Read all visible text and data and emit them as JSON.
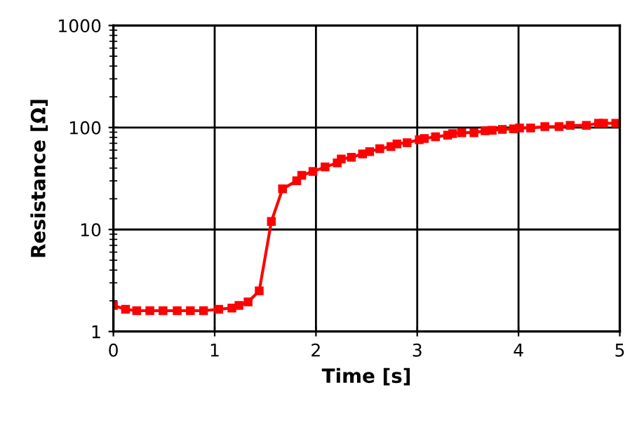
{
  "chart_data": {
    "type": "line",
    "xlabel": "Time [s]",
    "ylabel": "Resistance [Ω]",
    "log": "y",
    "grid": true,
    "marker": "square",
    "line_style": "solid",
    "xlim": [
      0,
      5
    ],
    "xticks": [
      0,
      1,
      2,
      3,
      4,
      5
    ],
    "ylim": [
      1,
      1000
    ],
    "yticks": [
      1,
      10,
      100,
      1000
    ],
    "series": [
      {
        "color": "#ff0000",
        "x": [
          0.0,
          0.12,
          0.23,
          0.36,
          0.49,
          0.63,
          0.76,
          0.89,
          1.04,
          1.17,
          1.24,
          1.33,
          1.44,
          1.56,
          1.67,
          1.81,
          1.86,
          1.97,
          2.09,
          2.21,
          2.25,
          2.35,
          2.46,
          2.53,
          2.63,
          2.74,
          2.8,
          2.9,
          3.02,
          3.07,
          3.18,
          3.3,
          3.35,
          3.44,
          3.56,
          3.67,
          3.74,
          3.84,
          3.95,
          4.01,
          4.12,
          4.26,
          4.4,
          4.51,
          4.67,
          4.79,
          4.84,
          4.96
        ],
        "values": [
          1.8,
          1.65,
          1.6,
          1.6,
          1.6,
          1.6,
          1.6,
          1.6,
          1.65,
          1.7,
          1.8,
          1.95,
          2.5,
          12,
          25,
          30,
          34,
          37,
          41,
          45,
          49,
          51,
          55,
          58,
          62,
          65,
          69,
          71,
          76,
          78,
          81,
          84,
          87,
          89,
          89,
          93,
          94,
          96,
          97,
          99,
          99,
          102,
          102,
          105,
          105,
          110,
          110,
          110
        ]
      }
    ]
  }
}
